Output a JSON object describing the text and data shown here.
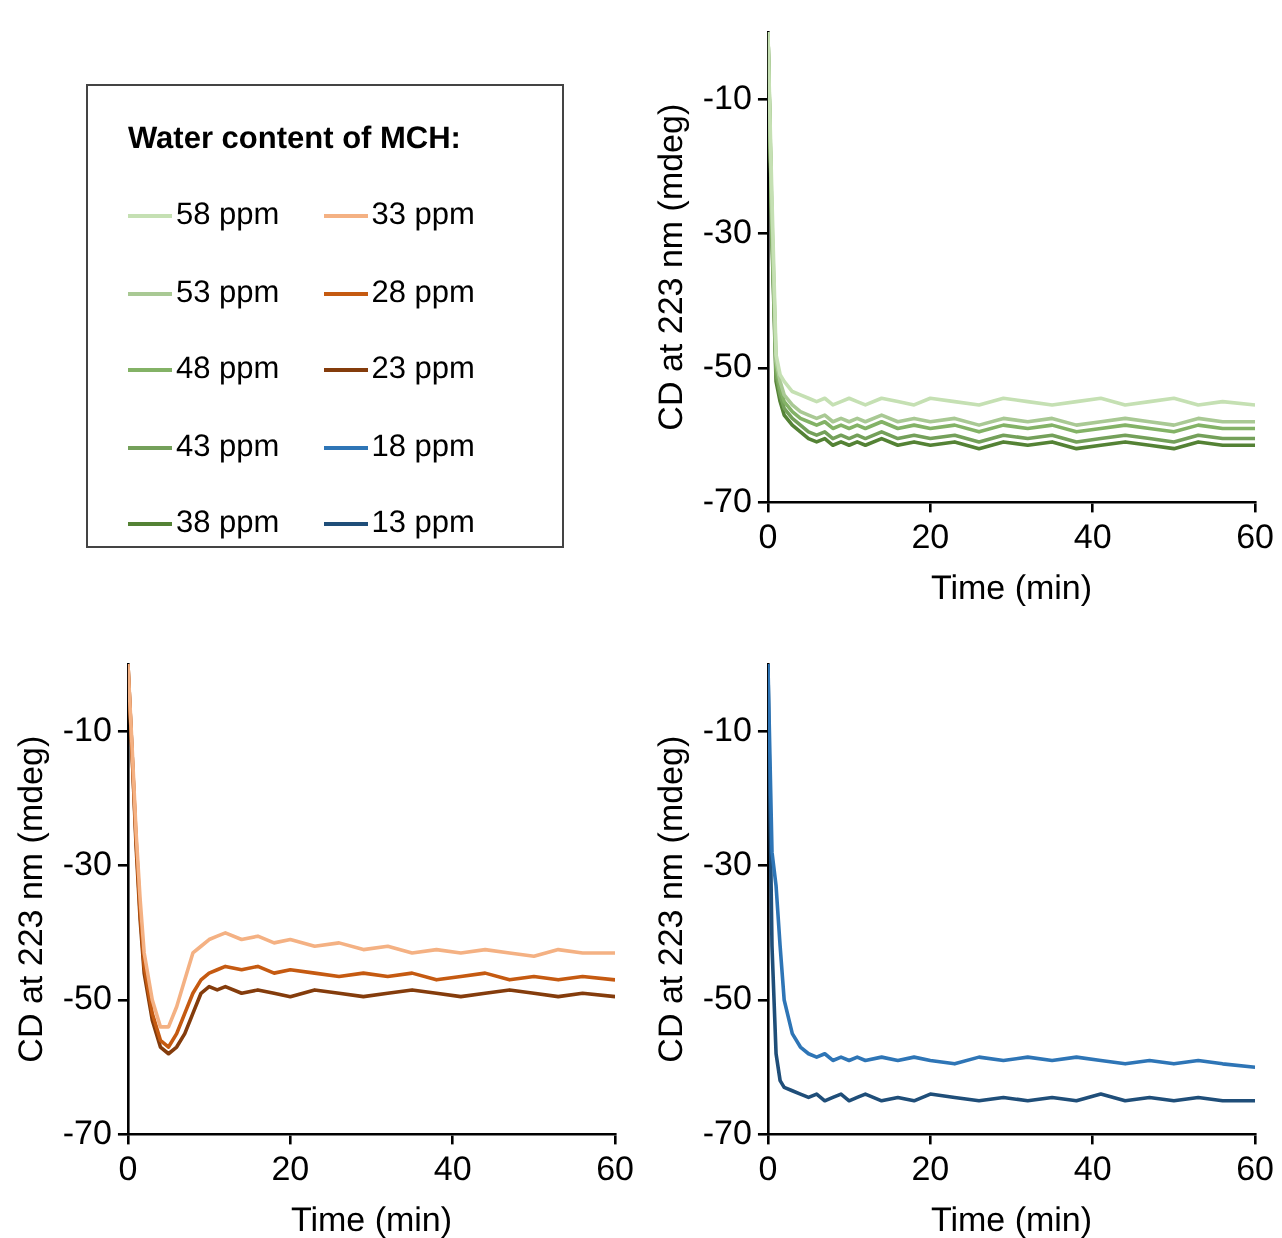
{
  "chart_data": [
    {
      "type": "line",
      "xlabel": "Time (min)",
      "ylabel": "CD at 223 nm (mdeg)",
      "legend_title": "Water content of MCH:",
      "legend": "left",
      "grid": false,
      "xlim": [
        0,
        60
      ],
      "xticks": [
        0,
        20,
        40,
        60
      ],
      "ylim": [
        -70,
        0
      ],
      "yticks": [
        -70,
        -50,
        -30,
        -10
      ],
      "x": [
        0,
        0.5,
        1,
        1.5,
        2,
        3,
        4,
        5,
        6,
        7,
        8,
        9,
        10,
        11,
        12,
        14,
        16,
        18,
        20,
        23,
        26,
        29,
        32,
        35,
        38,
        41,
        44,
        47,
        50,
        53,
        56,
        60
      ],
      "series": [
        {
          "name": "58 ppm",
          "color": "#c5e0b3",
          "values": [
            0,
            -25,
            -48,
            -51,
            -52,
            -53.5,
            -54,
            -54.5,
            -55,
            -54.5,
            -55.5,
            -55,
            -54.5,
            -55,
            -55.5,
            -54.5,
            -55,
            -55.5,
            -54.5,
            -55,
            -55.5,
            -54.5,
            -55,
            -55.5,
            -55,
            -54.5,
            -55.5,
            -55,
            -54.5,
            -55.5,
            -55,
            -55.5
          ]
        },
        {
          "name": "53 ppm",
          "color": "#a9c994",
          "values": [
            0,
            -28,
            -49,
            -52,
            -54,
            -55.5,
            -56.5,
            -57,
            -57.5,
            -57,
            -58,
            -57.5,
            -58,
            -57.5,
            -58,
            -57,
            -58,
            -57.5,
            -58,
            -57.5,
            -58.5,
            -57.5,
            -58,
            -57.5,
            -58.5,
            -58,
            -57.5,
            -58,
            -58.5,
            -57.5,
            -58,
            -58
          ]
        },
        {
          "name": "48 ppm",
          "color": "#83b266",
          "values": [
            0,
            -29,
            -50,
            -53,
            -55,
            -56.5,
            -57.5,
            -58,
            -58.5,
            -58,
            -59,
            -58.5,
            -59,
            -58.5,
            -59,
            -58,
            -59,
            -58.5,
            -59,
            -58.5,
            -59.5,
            -58.5,
            -59,
            -58.5,
            -59.5,
            -59,
            -58.5,
            -59,
            -59.5,
            -58.5,
            -59,
            -59
          ]
        },
        {
          "name": "43 ppm",
          "color": "#74a05a",
          "values": [
            0,
            -30,
            -51,
            -54,
            -56,
            -57.5,
            -58.5,
            -59.5,
            -60,
            -59.5,
            -60.5,
            -60,
            -60.5,
            -60,
            -60.5,
            -59.5,
            -60.5,
            -60,
            -60.5,
            -60,
            -61,
            -60,
            -60.5,
            -60,
            -61,
            -60.5,
            -60,
            -60.5,
            -61,
            -60,
            -60.5,
            -60.5
          ]
        },
        {
          "name": "38 ppm",
          "color": "#548235",
          "values": [
            0,
            -31,
            -52,
            -55,
            -57,
            -58.5,
            -59.5,
            -60.5,
            -61,
            -60.5,
            -61.5,
            -61,
            -61.5,
            -61,
            -61.5,
            -60.5,
            -61.5,
            -61,
            -61.5,
            -61,
            -62,
            -61,
            -61.5,
            -61,
            -62,
            -61.5,
            -61,
            -61.5,
            -62,
            -61,
            -61.5,
            -61.5
          ]
        }
      ]
    },
    {
      "type": "line",
      "xlabel": "Time (min)",
      "ylabel": "CD at 223 nm (mdeg)",
      "legend": "top",
      "grid": false,
      "xlim": [
        0,
        60
      ],
      "xticks": [
        0,
        20,
        40,
        60
      ],
      "ylim": [
        -70,
        0
      ],
      "yticks": [
        -70,
        -50,
        -30,
        -10
      ],
      "x": [
        0,
        0.5,
        1,
        1.5,
        2,
        3,
        4,
        5,
        6,
        7,
        8,
        9,
        10,
        11,
        12,
        14,
        16,
        18,
        20,
        23,
        26,
        29,
        32,
        35,
        38,
        41,
        44,
        47,
        50,
        53,
        56,
        60
      ],
      "series": [
        {
          "name": "33 ppm",
          "color": "#f4b183",
          "values": [
            0,
            -12,
            -25,
            -35,
            -43,
            -50,
            -54,
            -54,
            -51,
            -47,
            -43,
            -42,
            -41,
            -40.5,
            -40,
            -41,
            -40.5,
            -41.5,
            -41,
            -42,
            -41.5,
            -42.5,
            -42,
            -43,
            -42.5,
            -43,
            -42.5,
            -43,
            -43.5,
            -42.5,
            -43,
            -43
          ]
        },
        {
          "name": "28 ppm",
          "color": "#c55a11",
          "values": [
            0,
            -13,
            -26,
            -37,
            -45,
            -52,
            -56,
            -57,
            -55,
            -52,
            -49,
            -47,
            -46,
            -45.5,
            -45,
            -45.5,
            -45,
            -46,
            -45.5,
            -46,
            -46.5,
            -46,
            -46.5,
            -46,
            -47,
            -46.5,
            -46,
            -47,
            -46.5,
            -47,
            -46.5,
            -47
          ]
        },
        {
          "name": "23 ppm",
          "color": "#843c0c",
          "values": [
            0,
            -13,
            -27,
            -38,
            -46,
            -53,
            -57,
            -58,
            -57,
            -55,
            -52,
            -49,
            -48,
            -48.5,
            -48,
            -49,
            -48.5,
            -49,
            -49.5,
            -48.5,
            -49,
            -49.5,
            -49,
            -48.5,
            -49,
            -49.5,
            -49,
            -48.5,
            -49,
            -49.5,
            -49,
            -49.5
          ]
        }
      ]
    },
    {
      "type": "line",
      "xlabel": "Time (min)",
      "ylabel": "CD at 223 nm (mdeg)",
      "legend": "top",
      "grid": false,
      "xlim": [
        0,
        60
      ],
      "xticks": [
        0,
        20,
        40,
        60
      ],
      "ylim": [
        -70,
        0
      ],
      "yticks": [
        -70,
        -50,
        -30,
        -10
      ],
      "x": [
        0,
        0.5,
        1,
        1.5,
        2,
        3,
        4,
        5,
        6,
        7,
        8,
        9,
        10,
        11,
        12,
        14,
        16,
        18,
        20,
        23,
        26,
        29,
        32,
        35,
        38,
        41,
        44,
        47,
        50,
        53,
        56,
        60
      ],
      "series": [
        {
          "name": "18 ppm",
          "color": "#2e75b6",
          "values": [
            0,
            -28,
            -33,
            -42,
            -50,
            -55,
            -57,
            -58,
            -58.5,
            -58,
            -59,
            -58.5,
            -59,
            -58.5,
            -59,
            -58.5,
            -59,
            -58.5,
            -59,
            -59.5,
            -58.5,
            -59,
            -58.5,
            -59,
            -58.5,
            -59,
            -59.5,
            -59,
            -59.5,
            -59,
            -59.5,
            -60
          ]
        },
        {
          "name": "13 ppm",
          "color": "#1f4e79",
          "values": [
            0,
            -42,
            -58,
            -62,
            -63,
            -63.5,
            -64,
            -64.5,
            -64,
            -65,
            -64.5,
            -64,
            -65,
            -64.5,
            -64,
            -65,
            -64.5,
            -65,
            -64,
            -64.5,
            -65,
            -64.5,
            -65,
            -64.5,
            -65,
            -64,
            -65,
            -64.5,
            -65,
            -64.5,
            -65,
            -65
          ]
        }
      ]
    }
  ]
}
